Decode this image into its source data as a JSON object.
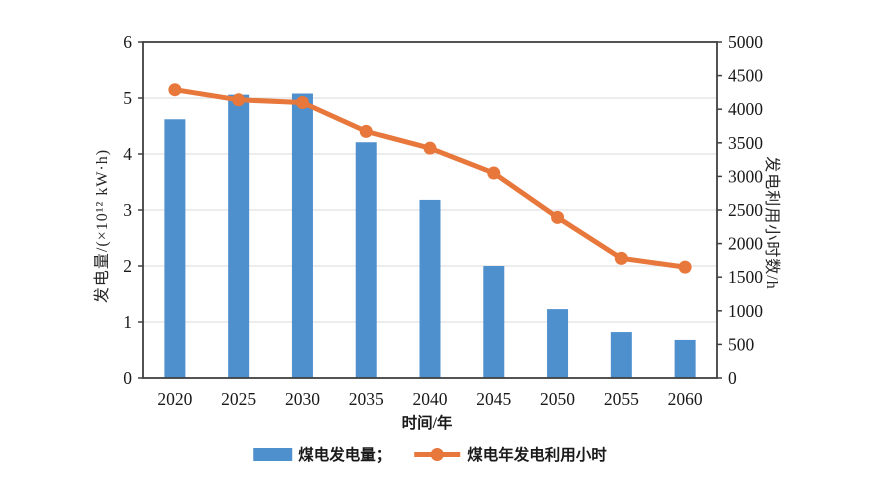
{
  "chart_data": {
    "type": "bar+line combo",
    "categories": [
      "2020",
      "2025",
      "2030",
      "2035",
      "2040",
      "2045",
      "2050",
      "2055",
      "2060"
    ],
    "series": [
      {
        "name": "煤电发电量",
        "type": "bar",
        "axis": "left",
        "values": [
          4.62,
          5.06,
          5.08,
          4.21,
          3.18,
          2.0,
          1.23,
          0.82,
          0.68
        ]
      },
      {
        "name": "煤电年发电利用小时",
        "type": "line",
        "axis": "right",
        "values": [
          4290,
          4140,
          4100,
          3670,
          3420,
          3050,
          2390,
          1780,
          1650
        ]
      }
    ],
    "xlabel": "时间/年",
    "left_axis": {
      "label": "发电量/(×10¹² kW·h)",
      "min": 0,
      "max": 6,
      "ticks": [
        0,
        1,
        2,
        3,
        4,
        5,
        6
      ]
    },
    "right_axis": {
      "label": "发电利用小时数/h",
      "min": 0,
      "max": 5000,
      "ticks": [
        0,
        500,
        1000,
        1500,
        2000,
        2500,
        3000,
        3500,
        4000,
        4500,
        5000
      ]
    },
    "grid": "horizontal gridlines at left-axis integers 1-5",
    "legend_position": "bottom center",
    "legend": [
      {
        "label": "煤电发电量；",
        "swatch": "bar"
      },
      {
        "label": "煤电年发电利用小时",
        "swatch": "line"
      }
    ]
  },
  "colors": {
    "bar": "#4e8fcd",
    "line": "#e8773b",
    "axis": "#404040",
    "gridline": "#d9d9d9",
    "text": "#1a1a1a",
    "background": "#ffffff"
  }
}
